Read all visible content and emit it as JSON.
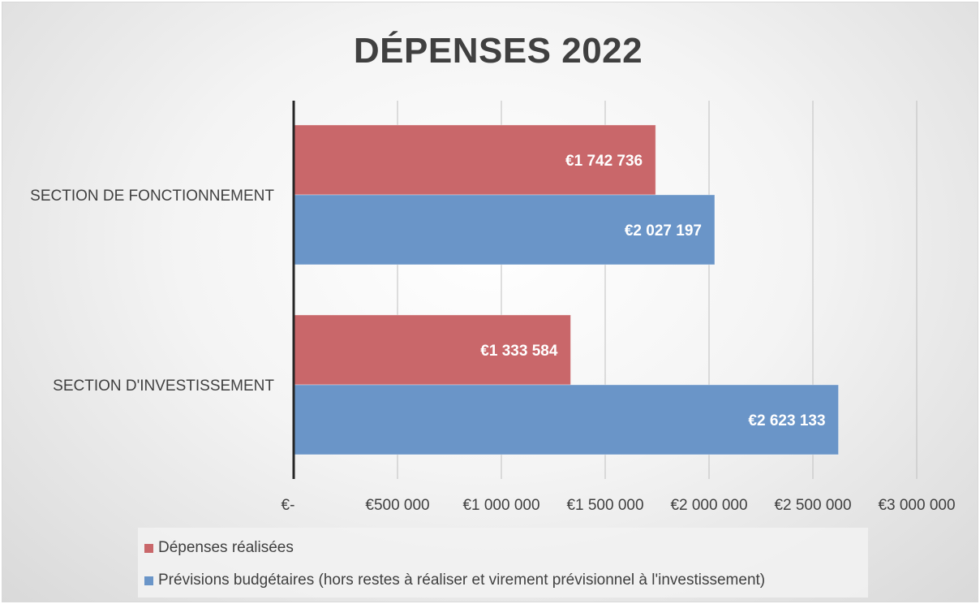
{
  "colors": {
    "realised": "#c9676a",
    "budget": "#6a95c8",
    "axis": "#262626",
    "grid": "#bfbfbf",
    "text": "#404040"
  },
  "chart_data": {
    "type": "bar",
    "orientation": "horizontal",
    "title": "DÉPENSES 2022",
    "categories": [
      "SECTION DE FONCTIONNEMENT",
      "SECTION D'INVESTISSEMENT"
    ],
    "series": [
      {
        "name": "Dépenses réalisées",
        "values": [
          1742736,
          1333584
        ],
        "labels": [
          "€1 742 736",
          "€1 333 584"
        ]
      },
      {
        "name": "Prévisions budgétaires (hors restes à réaliser et virement prévisionnel à l'investissement)",
        "values": [
          2027197,
          2623133
        ],
        "labels": [
          "€2 027 197",
          "€2 623 133"
        ]
      }
    ],
    "xlim": [
      0,
      3000000
    ],
    "xticks": [
      0,
      500000,
      1000000,
      1500000,
      2000000,
      2500000,
      3000000
    ],
    "xtick_labels": [
      "€-",
      "€500 000",
      "€1 000 000",
      "€1 500 000",
      "€2 000 000",
      "€2 500 000",
      "€3 000 000"
    ],
    "grid": true,
    "legend_position": "bottom-left"
  }
}
